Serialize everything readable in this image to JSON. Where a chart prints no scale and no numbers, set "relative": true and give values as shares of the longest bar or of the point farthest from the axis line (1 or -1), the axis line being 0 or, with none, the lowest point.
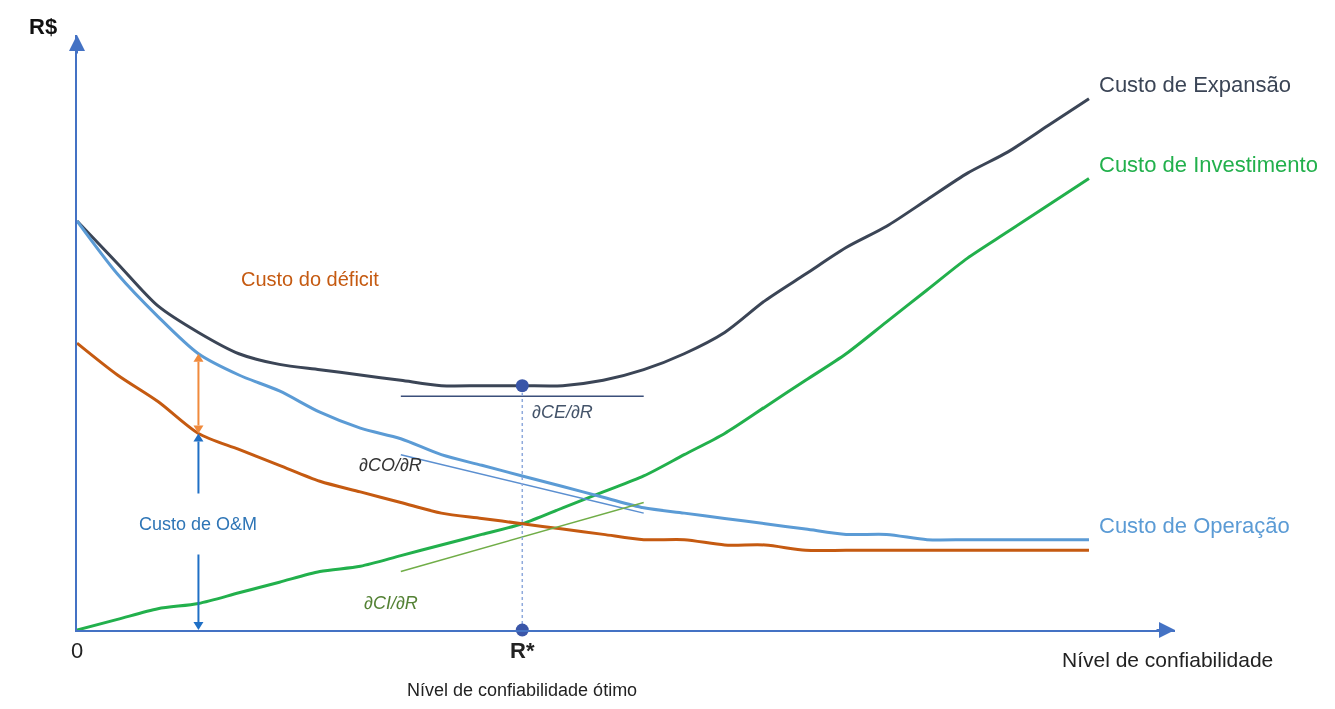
{
  "chart_data": {
    "type": "line",
    "relative": true,
    "xlabel": "Nível de confiabilidade",
    "ylabel": "R$",
    "categories": [
      "0",
      null,
      null,
      null,
      null,
      null,
      null,
      null,
      null,
      null,
      null,
      "R*",
      null,
      null,
      null,
      null,
      null,
      null,
      null,
      null,
      null,
      null,
      null,
      null,
      null,
      null
    ],
    "series": [
      {
        "name": "Custo de Expansão",
        "color": "#3b4556",
        "values": [
          0.77,
          0.69,
          0.61,
          0.56,
          0.52,
          0.5,
          0.49,
          0.48,
          0.47,
          0.46,
          0.46,
          0.46,
          0.46,
          0.47,
          0.49,
          0.52,
          0.56,
          0.62,
          0.67,
          0.72,
          0.76,
          0.81,
          0.86,
          0.9,
          0.95,
          1
        ]
      },
      {
        "name": "Custo de Investimento",
        "color": "#22b04c",
        "values": [
          0,
          0.02,
          0.04,
          0.05,
          0.07,
          0.09,
          0.11,
          0.12,
          0.14,
          0.16,
          0.18,
          0.2,
          0.23,
          0.26,
          0.29,
          0.33,
          0.37,
          0.42,
          0.47,
          0.52,
          0.58,
          0.64,
          0.7,
          0.75,
          0.8,
          0.85
        ]
      },
      {
        "name": "Custo de Operação",
        "color": "#5b9bd5",
        "values": [
          0.77,
          0.67,
          0.59,
          0.52,
          0.48,
          0.45,
          0.41,
          0.38,
          0.36,
          0.33,
          0.31,
          0.29,
          0.27,
          0.25,
          0.23,
          0.22,
          0.21,
          0.2,
          0.19,
          0.18,
          0.18,
          0.17,
          0.17,
          0.17,
          0.17,
          0.17
        ]
      },
      {
        "color": "#c55a11",
        "values": [
          0.54,
          0.48,
          0.43,
          0.37,
          0.34,
          0.31,
          0.28,
          0.26,
          0.24,
          0.22,
          0.21,
          0.2,
          0.19,
          0.18,
          0.17,
          0.17,
          0.16,
          0.16,
          0.15,
          0.15,
          0.15,
          0.15,
          0.15,
          0.15,
          0.15,
          0.15
        ]
      },
      {
        "color": "#3b4f7a",
        "values": [
          null,
          null,
          null,
          null,
          null,
          null,
          null,
          null,
          0.44,
          null,
          null,
          null,
          null,
          null,
          0.44,
          null,
          null,
          null,
          null,
          null,
          null,
          null,
          null,
          null,
          null,
          null
        ]
      },
      {
        "color": "#5b8fd0",
        "values": [
          null,
          null,
          null,
          null,
          null,
          null,
          null,
          null,
          0.33,
          null,
          null,
          null,
          null,
          null,
          0.22,
          null,
          null,
          null,
          null,
          null,
          null,
          null,
          null,
          null,
          null,
          null
        ]
      },
      {
        "color": "#70ad47",
        "values": [
          null,
          null,
          null,
          null,
          null,
          null,
          null,
          null,
          0.11,
          null,
          null,
          null,
          null,
          null,
          0.24,
          null,
          null,
          null,
          null,
          null,
          null,
          null,
          null,
          null,
          null,
          null
        ]
      },
      {
        "color": "#8faadc",
        "x": [
          "R*",
          "R*"
        ],
        "values": [
          0,
          0.46
        ],
        "line_style": "dotted"
      },
      {
        "type": "scatter",
        "marker": "circle",
        "color": "#3a56a8",
        "values": [
          null,
          null,
          null,
          null,
          null,
          null,
          null,
          null,
          null,
          null,
          null,
          0.46,
          null,
          null,
          null,
          null,
          null,
          null,
          null,
          null,
          null,
          null,
          null,
          null,
          null,
          null
        ]
      },
      {
        "type": "scatter",
        "marker": "circle",
        "color": "#3a56a8",
        "values": [
          null,
          null,
          null,
          null,
          null,
          null,
          null,
          null,
          null,
          null,
          null,
          0,
          null,
          null,
          null,
          null,
          null,
          null,
          null,
          null,
          null,
          null,
          null,
          null,
          null,
          null
        ]
      }
    ],
    "annotations": [
      "Custo do déficit",
      "Custo de O&M",
      "∂CE/∂R",
      "∂CO/∂R",
      "∂CI/∂R",
      "Nível de confiabilidade ótimo"
    ],
    "legend": false,
    "grid": false,
    "tick_labels": "x",
    "marker": "none",
    "line_style": "solid"
  }
}
